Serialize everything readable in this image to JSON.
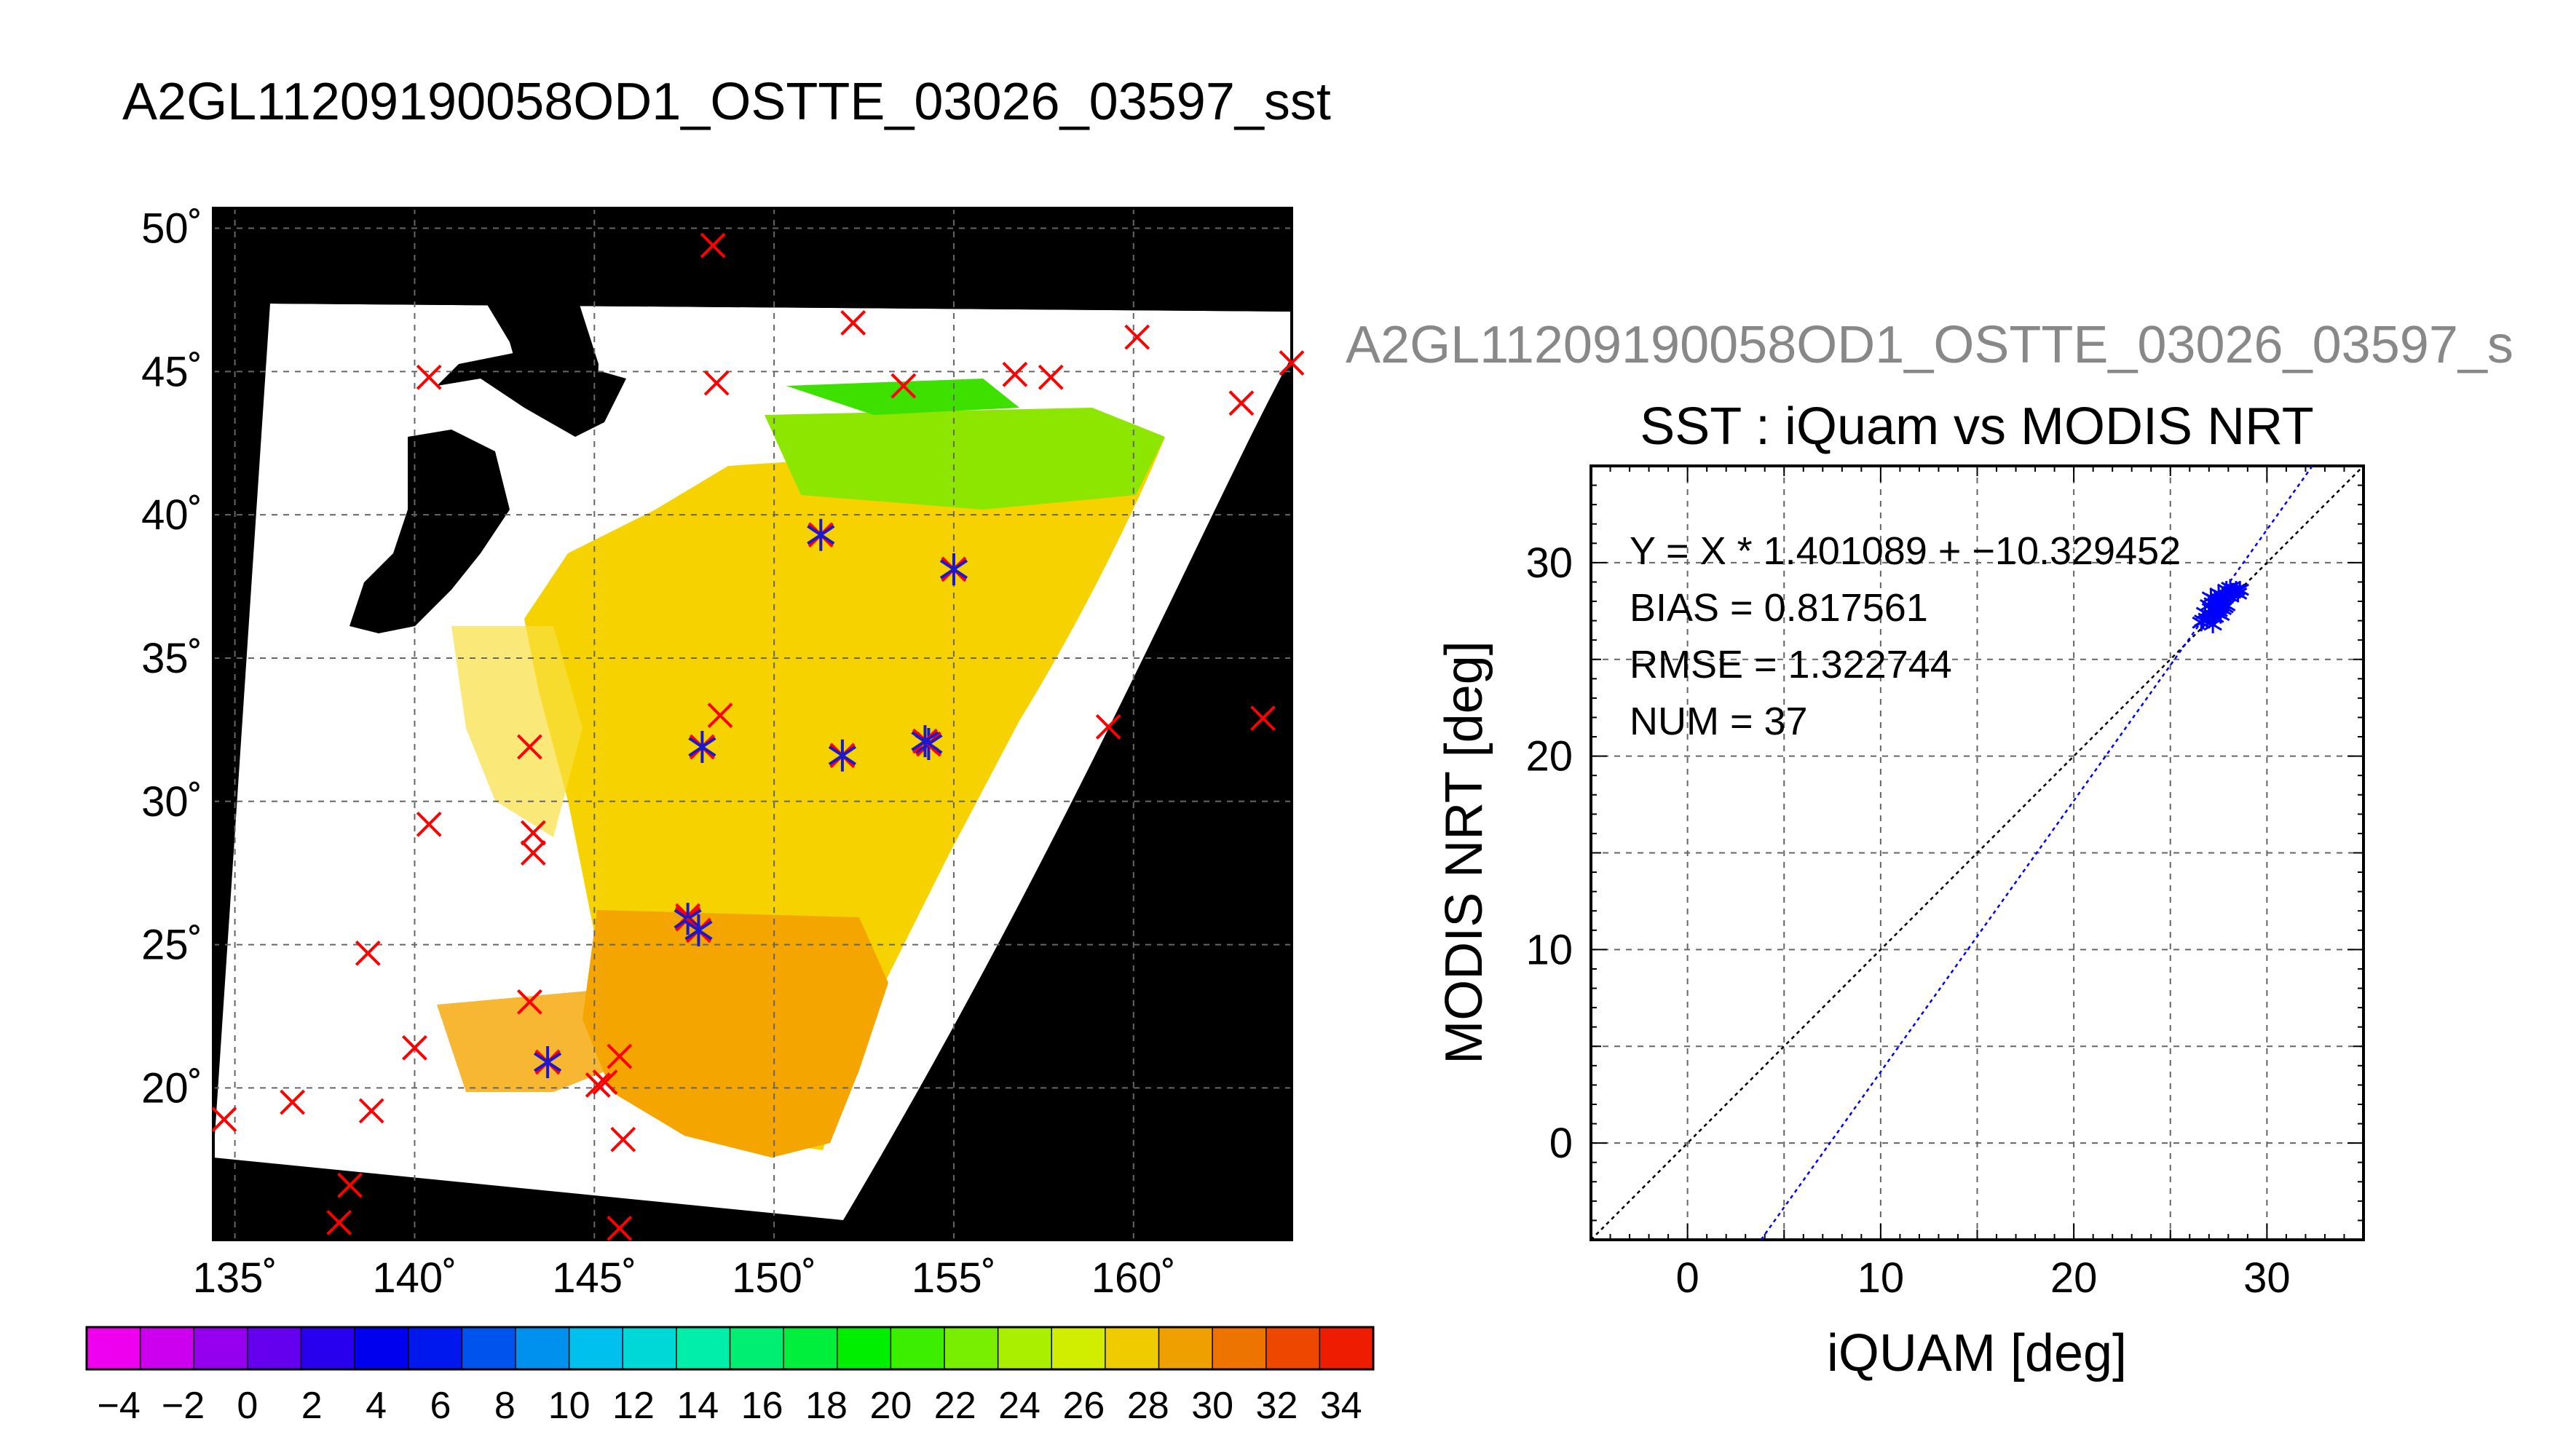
{
  "figure": {
    "main_title": "A2GL11209190058OD1_OSTTE_03026_03597_sst",
    "secondary_title": "A2GL11209190058OD1_OSTTE_03026_03597_s"
  },
  "colors": {
    "land": "#000000",
    "cloud": "#ffffff",
    "iquam_marker": "#ff0000",
    "matchup_marker": "#1a1acc",
    "fit_line": "#0000ff",
    "one_to_one_line": "#000000",
    "grid": "#666666"
  },
  "chart_data": [
    {
      "type": "map",
      "lon_ticks": [
        "135˚",
        "140˚",
        "145˚",
        "150˚",
        "155˚",
        "160˚"
      ],
      "lat_ticks": [
        "50˚",
        "45˚",
        "40˚",
        "35˚",
        "30˚",
        "25˚",
        "20˚"
      ],
      "lon_range": [
        134.4,
        164.4
      ],
      "lat_range": [
        14.7,
        50.7
      ],
      "iquam_points": [
        [
          148.3,
          49.4
        ],
        [
          152.2,
          46.7
        ],
        [
          140.4,
          44.8
        ],
        [
          148.4,
          44.6
        ],
        [
          153.6,
          44.5
        ],
        [
          156.7,
          44.9
        ],
        [
          157.7,
          44.8
        ],
        [
          160.1,
          46.2
        ],
        [
          163.0,
          43.9
        ],
        [
          164.4,
          45.3
        ],
        [
          148.5,
          33.0
        ],
        [
          159.3,
          32.6
        ],
        [
          163.6,
          32.9
        ],
        [
          143.2,
          31.9
        ],
        [
          140.4,
          29.2
        ],
        [
          143.3,
          28.9
        ],
        [
          143.3,
          28.2
        ],
        [
          147.6,
          26.0
        ],
        [
          138.7,
          24.7
        ],
        [
          143.2,
          23.0
        ],
        [
          140.0,
          21.4
        ],
        [
          145.7,
          21.1
        ],
        [
          145.3,
          20.2
        ],
        [
          145.1,
          20.1
        ],
        [
          136.6,
          19.5
        ],
        [
          138.8,
          19.2
        ],
        [
          134.7,
          18.9
        ],
        [
          145.8,
          18.2
        ],
        [
          138.2,
          16.6
        ],
        [
          137.9,
          15.3
        ],
        [
          145.7,
          15.1
        ]
      ],
      "matchup_points": [
        [
          151.3,
          39.3
        ],
        [
          155.0,
          38.1
        ],
        [
          148.0,
          31.9
        ],
        [
          151.9,
          31.6
        ],
        [
          154.3,
          32.0
        ],
        [
          154.2,
          32.1
        ],
        [
          147.6,
          25.9
        ],
        [
          147.9,
          25.5
        ],
        [
          143.7,
          20.9
        ]
      ],
      "colorbar": {
        "labels": [
          "−4",
          "−2",
          "0",
          "2",
          "4",
          "6",
          "8",
          "10",
          "12",
          "14",
          "16",
          "18",
          "20",
          "22",
          "24",
          "26",
          "28",
          "30",
          "32",
          "34"
        ],
        "range": [
          -5,
          35
        ],
        "segment_colors": [
          "#ee00ee",
          "#cc00ee",
          "#9400ee",
          "#6400ee",
          "#2800ee",
          "#0000ee",
          "#0018ee",
          "#0054ee",
          "#0090ee",
          "#00c0ee",
          "#00d8d8",
          "#00eeaa",
          "#00ee72",
          "#00ee3c",
          "#00ee00",
          "#3cee00",
          "#78ee00",
          "#aaee00",
          "#d2ee00",
          "#eecc00",
          "#eea000",
          "#ee7400",
          "#ee4800",
          "#ee1c00"
        ]
      }
    },
    {
      "type": "scatter",
      "title": "SST : iQuam vs MODIS NRT",
      "xlabel": "iQUAM [deg]",
      "ylabel": "MODIS NRT [deg]",
      "xlim": [
        -5,
        35
      ],
      "ylim": [
        -5,
        35
      ],
      "x_ticks": [
        "0",
        "10",
        "20",
        "30"
      ],
      "y_ticks": [
        "0",
        "10",
        "20",
        "30"
      ],
      "grid": true,
      "annotations": [
        "Y = X * 1.401089 + −10.329452",
        "BIAS = 0.817561",
        "RMSE = 1.322744",
        "NUM = 37"
      ],
      "fit": {
        "slope": 1.401089,
        "intercept": -10.329452
      },
      "points": [
        [
          26.6,
          26.9
        ],
        [
          26.8,
          27.4
        ],
        [
          27.0,
          27.8
        ],
        [
          27.1,
          28.2
        ],
        [
          27.2,
          27.6
        ],
        [
          27.3,
          27.2
        ],
        [
          27.4,
          28.0
        ],
        [
          27.5,
          27.5
        ],
        [
          27.6,
          27.9
        ],
        [
          27.7,
          28.3
        ],
        [
          27.8,
          27.7
        ],
        [
          27.9,
          28.6
        ],
        [
          28.0,
          28.3
        ],
        [
          28.1,
          28.7
        ],
        [
          28.2,
          28.5
        ],
        [
          28.4,
          28.6
        ],
        [
          28.5,
          28.4
        ],
        [
          28.6,
          28.6
        ],
        [
          26.9,
          27.1
        ],
        [
          27.0,
          27.3
        ],
        [
          27.1,
          27.6
        ],
        [
          27.2,
          27.9
        ],
        [
          27.3,
          28.1
        ],
        [
          27.4,
          27.4
        ],
        [
          27.5,
          27.8
        ],
        [
          27.6,
          28.1
        ],
        [
          27.7,
          27.6
        ],
        [
          27.2,
          26.8
        ],
        [
          27.3,
          27.5
        ],
        [
          27.4,
          27.7
        ],
        [
          27.5,
          28.4
        ],
        [
          27.6,
          27.3
        ],
        [
          27.7,
          27.9
        ],
        [
          27.8,
          28.2
        ],
        [
          27.9,
          27.8
        ],
        [
          26.7,
          27.0
        ],
        [
          28.3,
          28.5
        ]
      ]
    }
  ]
}
